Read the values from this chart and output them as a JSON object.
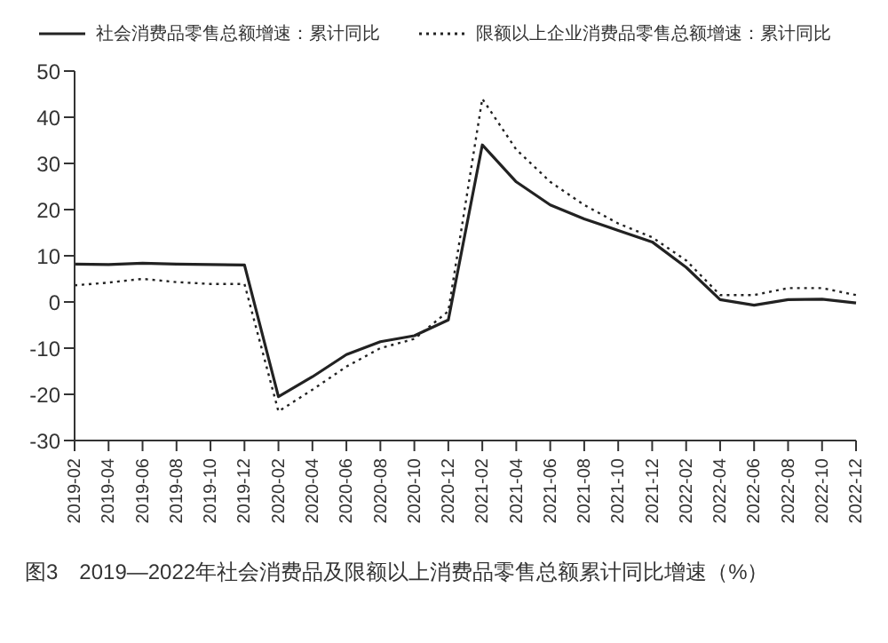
{
  "chart_data": {
    "type": "line",
    "categories": [
      "2019-02",
      "2019-04",
      "2019-06",
      "2019-08",
      "2019-10",
      "2019-12",
      "2020-02",
      "2020-04",
      "2020-06",
      "2020-08",
      "2020-10",
      "2020-12",
      "2021-02",
      "2021-04",
      "2021-06",
      "2021-08",
      "2021-10",
      "2021-12",
      "2022-02",
      "2022-04",
      "2022-06",
      "2022-08",
      "2022-10",
      "2022-12"
    ],
    "series": [
      {
        "name": "社会消费品零售总额增速：累计同比",
        "color": "#222222",
        "line_style": "solid",
        "values": [
          8.2,
          8.1,
          8.4,
          8.2,
          8.1,
          8.0,
          -20.5,
          -16.2,
          -11.4,
          -8.6,
          -7.3,
          -3.9,
          34,
          26,
          21,
          18,
          15.5,
          13,
          7.5,
          0.5,
          -0.7,
          0.5,
          0.6,
          -0.2
        ]
      },
      {
        "name": "限额以上企业消费品零售总额增速：累计同比",
        "color": "#222222",
        "line_style": "dotted",
        "values": [
          3.6,
          4.2,
          5.0,
          4.3,
          3.9,
          3.9,
          -23.7,
          -19,
          -14,
          -10,
          -8,
          -2,
          44,
          33,
          26,
          21,
          17,
          14,
          9,
          1.5,
          1.5,
          3,
          3,
          1.5
        ]
      }
    ],
    "ylim": [
      -30,
      50
    ],
    "yticks": [
      -30,
      -20,
      -10,
      0,
      10,
      20,
      30,
      40,
      50
    ],
    "grid": false,
    "legend": "top",
    "marker": "none",
    "annotations": [
      "图3　2019—2022年社会消费品及限额以上消费品零售总额累计同比增速（%）"
    ]
  }
}
